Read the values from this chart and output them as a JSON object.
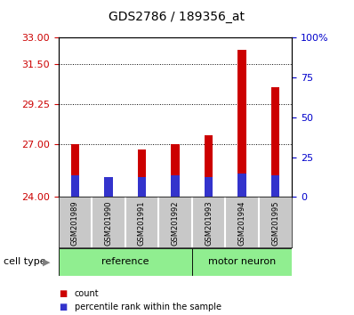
{
  "title": "GDS2786 / 189356_at",
  "samples": [
    "GSM201989",
    "GSM201990",
    "GSM201991",
    "GSM201992",
    "GSM201993",
    "GSM201994",
    "GSM201995"
  ],
  "bar_red_tops": [
    27.0,
    24.8,
    26.7,
    27.0,
    27.5,
    32.3,
    30.2
  ],
  "bar_blue_tops": [
    25.2,
    25.1,
    25.1,
    25.2,
    25.1,
    25.3,
    25.2
  ],
  "y_min": 24,
  "y_max": 33,
  "y_left_ticks": [
    24,
    27,
    29.25,
    31.5,
    33
  ],
  "y_right_tick_positions": [
    24,
    26.25,
    28.5,
    30.75,
    33
  ],
  "y_right_labels": [
    "0",
    "25",
    "50",
    "75",
    "100%"
  ],
  "hline_values": [
    27,
    29.25,
    31.5
  ],
  "bar_width": 0.25,
  "red_color": "#cc0000",
  "blue_color": "#3333cc",
  "left_tick_color": "#cc0000",
  "right_tick_color": "#0000cc",
  "ref_indices": [
    0,
    1,
    2,
    3
  ],
  "mn_indices": [
    4,
    5,
    6
  ],
  "ref_label": "reference",
  "mn_label": "motor neuron",
  "group_color": "#90ee90",
  "sample_bg_color": "#c8c8c8",
  "legend_items": [
    [
      "#cc0000",
      "count"
    ],
    [
      "#3333cc",
      "percentile rank within the sample"
    ]
  ],
  "cell_type_label": "cell type"
}
